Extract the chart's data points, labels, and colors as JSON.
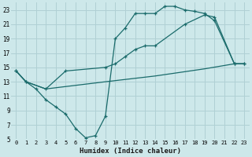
{
  "xlabel": "Humidex (Indice chaleur)",
  "background_color": "#cde8ea",
  "grid_color": "#b0d0d4",
  "line_color": "#1a6b6b",
  "xlim": [
    -0.5,
    23.5
  ],
  "ylim": [
    5,
    24
  ],
  "xticks": [
    0,
    1,
    2,
    3,
    4,
    5,
    6,
    7,
    8,
    9,
    10,
    11,
    12,
    13,
    14,
    15,
    16,
    17,
    18,
    19,
    20,
    21,
    22,
    23
  ],
  "yticks": [
    5,
    7,
    9,
    11,
    13,
    15,
    17,
    19,
    21,
    23
  ],
  "line1_x": [
    0,
    1,
    2,
    3,
    4,
    5,
    6,
    7,
    8,
    9,
    10,
    11,
    12,
    13,
    14,
    15,
    16,
    17,
    18,
    19,
    20,
    22,
    23
  ],
  "line1_y": [
    14.5,
    13.0,
    12.0,
    10.5,
    9.5,
    8.5,
    6.5,
    5.2,
    5.5,
    8.2,
    19.0,
    20.5,
    22.5,
    22.5,
    22.5,
    23.5,
    23.5,
    23.0,
    22.8,
    22.5,
    21.5,
    15.5,
    15.5
  ],
  "line2_x": [
    0,
    1,
    3,
    5,
    9,
    10,
    11,
    12,
    13,
    14,
    17,
    19,
    20,
    22,
    23
  ],
  "line2_y": [
    14.5,
    13.0,
    12.0,
    14.5,
    15.0,
    15.5,
    16.5,
    17.5,
    18.0,
    18.0,
    21.0,
    22.3,
    22.0,
    15.5,
    15.5
  ],
  "line3_x": [
    0,
    1,
    3,
    9,
    14,
    19,
    22,
    23
  ],
  "line3_y": [
    14.5,
    13.0,
    12.0,
    13.0,
    13.8,
    14.8,
    15.5,
    15.5
  ],
  "figsize": [
    3.2,
    2.0
  ],
  "dpi": 100
}
